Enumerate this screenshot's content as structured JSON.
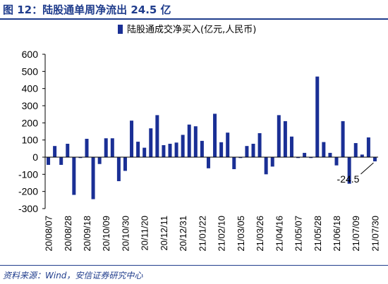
{
  "figure": {
    "title": "图 12：陆股通单周净流出 24.5 亿",
    "source": "资料来源：Wind，安信证券研究中心"
  },
  "colors": {
    "bar": "#1a2f95",
    "accent": "#1f3c8c",
    "text": "#000000"
  },
  "chart_data": {
    "type": "bar",
    "legend": {
      "label": "陆股通成交净买入(亿元,人民币)",
      "position": "top"
    },
    "ylim": [
      -300,
      600
    ],
    "yticks": [
      -300,
      -200,
      -100,
      0,
      100,
      200,
      300,
      400,
      500,
      600
    ],
    "xtick_labels": [
      "20/08/07",
      "20/08/28",
      "20/09/18",
      "20/10/09",
      "20/10/30",
      "20/11/20",
      "20/12/11",
      "20/12/31",
      "21/01/22",
      "21/02/10",
      "21/03/05",
      "21/03/26",
      "21/04/16",
      "21/05/07",
      "21/05/28",
      "21/06/18",
      "21/07/09",
      "21/07/30"
    ],
    "annotation": {
      "text": "-24.5"
    },
    "values": [
      -45,
      65,
      -45,
      78,
      -220,
      -5,
      107,
      -245,
      -40,
      110,
      110,
      -140,
      -80,
      213,
      90,
      55,
      168,
      245,
      70,
      78,
      85,
      130,
      190,
      180,
      95,
      -65,
      253,
      87,
      143,
      -70,
      -5,
      65,
      78,
      140,
      -100,
      -55,
      245,
      210,
      120,
      -5,
      25,
      -5,
      470,
      88,
      25,
      -48,
      210,
      -155,
      82,
      15,
      115,
      -24.5
    ]
  }
}
